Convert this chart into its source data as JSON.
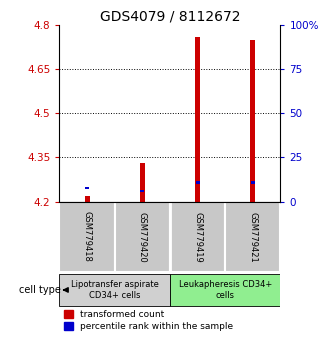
{
  "title": "GDS4079 / 8112672",
  "samples": [
    "GSM779418",
    "GSM779420",
    "GSM779419",
    "GSM779421"
  ],
  "red_values": [
    4.22,
    4.33,
    4.76,
    4.75
  ],
  "blue_values": [
    4.245,
    4.235,
    4.265,
    4.265
  ],
  "y_min": 4.2,
  "y_max": 4.8,
  "y_ticks_left": [
    4.2,
    4.35,
    4.5,
    4.65,
    4.8
  ],
  "right_axis_labels": [
    "0",
    "25",
    "50",
    "75",
    "100%"
  ],
  "y_ticks_right_pos": [
    4.2,
    4.35,
    4.5,
    4.65,
    4.8
  ],
  "cell_type_groups": [
    {
      "label": "Lipotransfer aspirate\nCD34+ cells",
      "start": 0,
      "end": 2,
      "color": "#d0d0d0"
    },
    {
      "label": "Leukapheresis CD34+\ncells",
      "start": 2,
      "end": 4,
      "color": "#90ee90"
    }
  ],
  "red_color": "#cc0000",
  "blue_color": "#0000cc",
  "bar_width": 0.09,
  "blue_bar_width": 0.07,
  "blue_bar_height": 0.008,
  "background_color": "#ffffff",
  "left_label_color": "#cc0000",
  "right_label_color": "#0000cc",
  "title_fontsize": 10,
  "tick_fontsize": 7.5,
  "sample_fontsize": 6,
  "celltype_fontsize": 6,
  "legend_fontsize": 6.5,
  "legend_red": "transformed count",
  "legend_blue": "percentile rank within the sample",
  "sample_box_color": "#c8c8c8",
  "n_samples": 4
}
